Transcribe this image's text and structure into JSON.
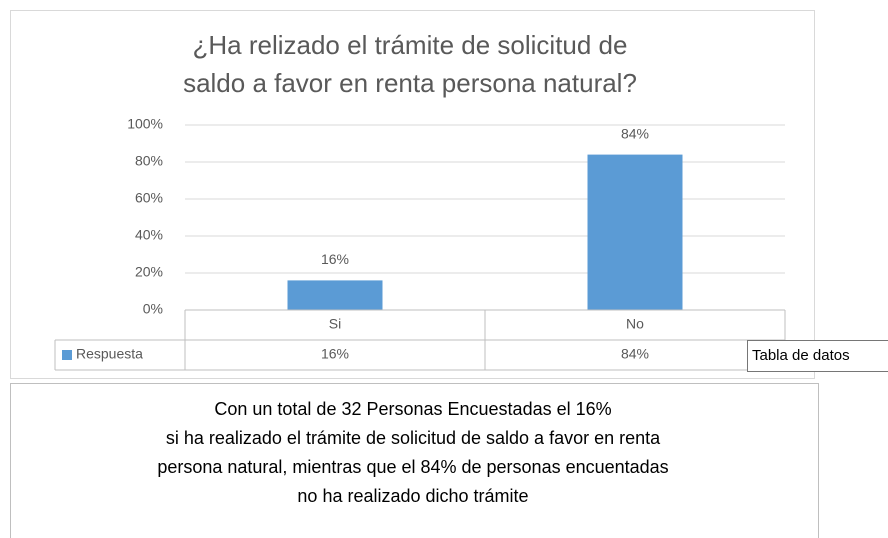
{
  "chart_data": {
    "type": "bar",
    "title": [
      "¿Ha relizado el trámite de solicitud de",
      "saldo a favor en renta persona natural?"
    ],
    "categories": [
      "Si",
      "No"
    ],
    "series": [
      {
        "name": "Respuesta",
        "color": "#5b9bd5",
        "values": [
          16,
          84
        ],
        "value_labels": [
          "16%",
          "84%"
        ]
      }
    ],
    "ylim": [
      0,
      100
    ],
    "yticks": [
      {
        "value": 0,
        "label": "0%"
      },
      {
        "value": 20,
        "label": "20%"
      },
      {
        "value": 40,
        "label": "40%"
      },
      {
        "value": 60,
        "label": "60%"
      },
      {
        "value": 80,
        "label": "80%"
      },
      {
        "value": 100,
        "label": "100%"
      }
    ],
    "grid": true,
    "data_table": true,
    "tooltip": "Tabla de datos"
  },
  "text_box": {
    "lines": [
      "Con un total de 32 Personas Encuestadas el 16%",
      "si ha realizado el trámite de solicitud de saldo a favor en renta",
      "persona natural, mientras que el  84% de personas encuentadas",
      "no ha realizado dicho trámite"
    ]
  }
}
